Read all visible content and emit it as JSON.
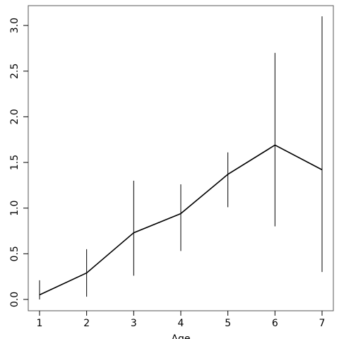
{
  "chart_data": {
    "type": "line",
    "x_label": "Age",
    "x": [
      1,
      2,
      3,
      4,
      5,
      6,
      7
    ],
    "series": [
      {
        "color": "#000000",
        "values": [
          0.05,
          0.29,
          0.73,
          0.94,
          1.37,
          1.69,
          1.42
        ],
        "lower": [
          0.0,
          0.03,
          0.26,
          0.53,
          1.01,
          0.8,
          0.3
        ],
        "upper": [
          0.21,
          0.55,
          1.3,
          1.26,
          1.61,
          2.7,
          3.1
        ]
      }
    ],
    "xlim": [
      0.76,
      7.24
    ],
    "xticks": [
      1,
      2,
      3,
      4,
      5,
      6,
      7
    ],
    "ylim": [
      -0.124,
      3.217
    ],
    "yticks": [
      {
        "value": 0,
        "label": "0.0"
      },
      {
        "value": 0.5,
        "label": "0.5"
      },
      {
        "value": 1,
        "label": "1.0"
      },
      {
        "value": 1.5,
        "label": "1.5"
      },
      {
        "value": 2,
        "label": "2.0"
      },
      {
        "value": 2.5,
        "label": "2.5"
      },
      {
        "value": 3,
        "label": "3.0"
      }
    ]
  }
}
